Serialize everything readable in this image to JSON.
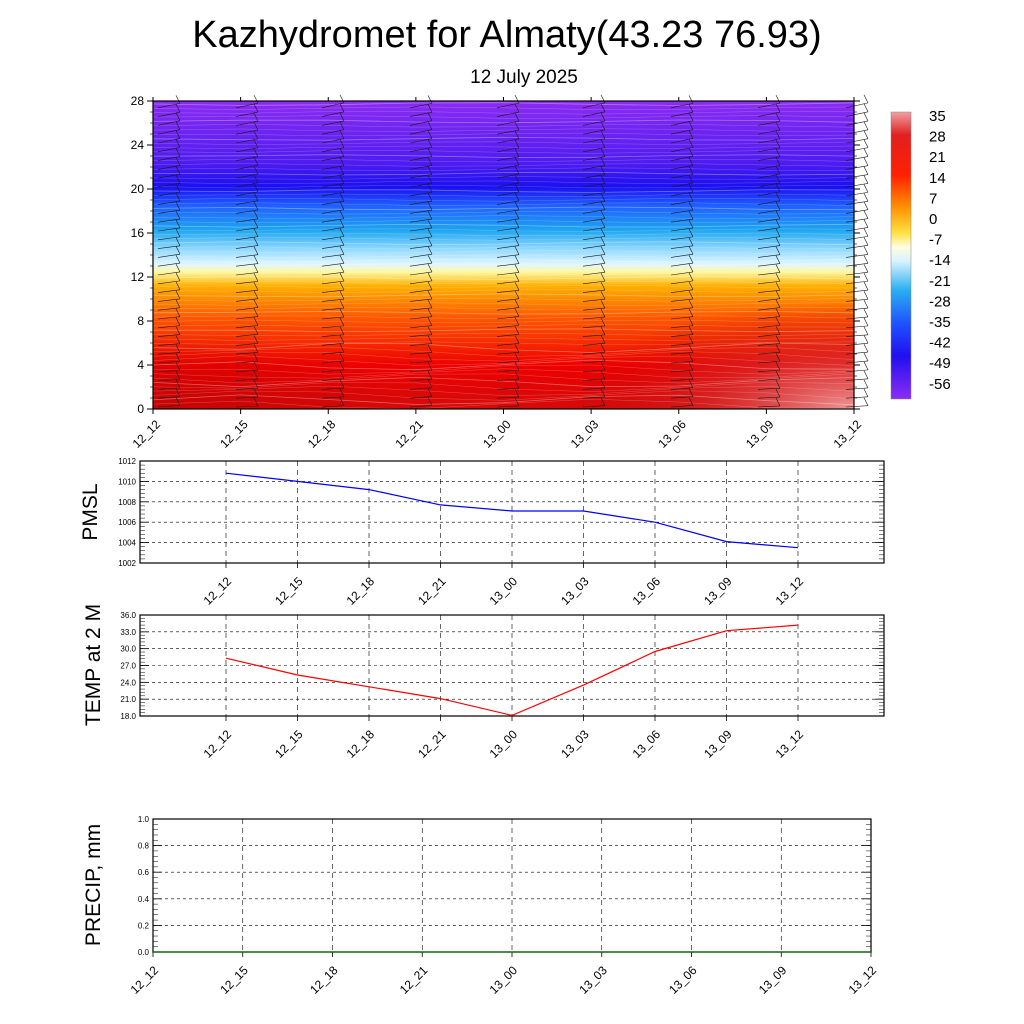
{
  "header": {
    "title": "Kazhydromet for Almaty(43.23 76.93)",
    "subtitle": "12 July 2025"
  },
  "colors": {
    "pmsl_line": "#0000ff",
    "temp_line": "#ff0000",
    "precip_line": "#006400"
  },
  "chart_data": [
    {
      "id": "height-time",
      "type": "heatmap",
      "title": "",
      "x_tick_labels": [
        "12_12",
        "12_15",
        "12_18",
        "12_21",
        "13_00",
        "13_03",
        "13_06",
        "13_09",
        "13_12"
      ],
      "y_tick_labels": [
        "0",
        "4",
        "8",
        "12",
        "16",
        "20",
        "24",
        "28"
      ],
      "ylim": [
        0,
        28
      ],
      "colorbar": {
        "labels": [
          "35",
          "28",
          "21",
          "14",
          "7",
          "0",
          "-7",
          "-14",
          "-21",
          "-28",
          "-35",
          "-42",
          "-49",
          "-56"
        ]
      },
      "wind_barbs": true
    },
    {
      "id": "pmsl",
      "type": "line",
      "ylabel": "PMSL",
      "x": [
        "12_12",
        "12_15",
        "12_18",
        "12_21",
        "13_00",
        "13_03",
        "13_06",
        "13_09",
        "13_12"
      ],
      "values": [
        1010.8,
        1010.0,
        1009.2,
        1007.7,
        1007.1,
        1007.1,
        1006.0,
        1004.1,
        1003.5
      ],
      "y_tick_labels": [
        "1002",
        "1004",
        "1006",
        "1008",
        "1010",
        "1012"
      ],
      "ylim": [
        1002,
        1012
      ],
      "grid": true
    },
    {
      "id": "temp",
      "type": "line",
      "ylabel": "TEMP at 2 M",
      "x": [
        "12_12",
        "12_15",
        "12_18",
        "12_21",
        "13_00",
        "13_03",
        "13_06",
        "13_09",
        "13_12"
      ],
      "values": [
        28.3,
        25.3,
        23.2,
        21.1,
        18.1,
        23.5,
        29.5,
        33.2,
        34.2
      ],
      "y_tick_labels": [
        "18.0",
        "21.0",
        "24.0",
        "27.0",
        "30.0",
        "33.0",
        "36.0"
      ],
      "ylim": [
        18,
        36
      ],
      "grid": true
    },
    {
      "id": "precip",
      "type": "line",
      "ylabel": "PRECIP, mm",
      "x_tick_labels": [
        "12_12",
        "12_15",
        "12_18",
        "12_21",
        "13_00",
        "13_03",
        "13_06",
        "13_09",
        "13_12"
      ],
      "values": [
        0,
        0,
        0,
        0,
        0,
        0,
        0,
        0,
        0
      ],
      "y_tick_labels": [
        "0.0",
        "0.2",
        "0.4",
        "0.6",
        "0.8",
        "1.0"
      ],
      "ylim": [
        0,
        1
      ],
      "grid": true
    }
  ]
}
